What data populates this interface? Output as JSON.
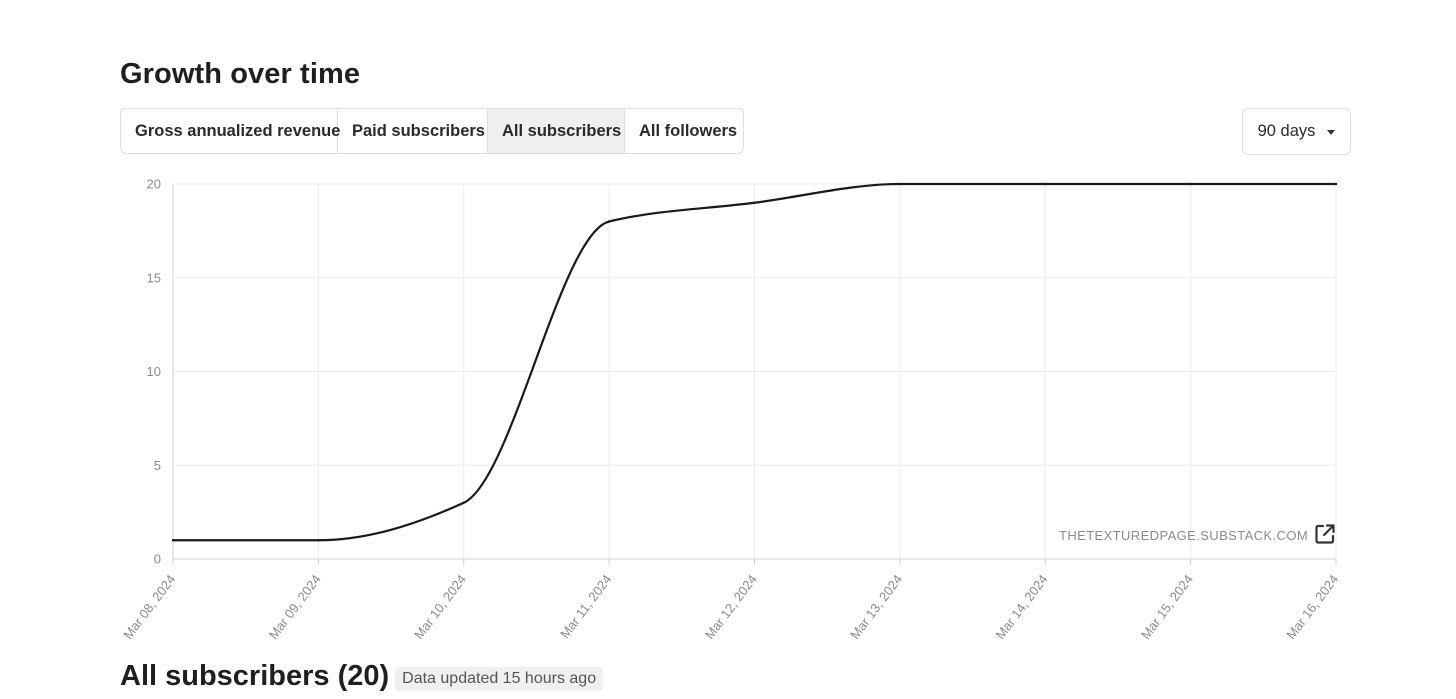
{
  "header": {
    "title": "Growth over time"
  },
  "tabs": [
    {
      "label": "Gross annualized revenue",
      "active": false
    },
    {
      "label": "Paid subscribers",
      "active": false
    },
    {
      "label": "All subscribers",
      "active": true
    },
    {
      "label": "All followers",
      "active": false
    }
  ],
  "range_select": {
    "value": "90 days",
    "icon": "caret-down-icon"
  },
  "watermark": "THETEXTUREDPAGE.SUBSTACK.COM",
  "open_external_icon": "external-link-icon",
  "footer": {
    "title": "All subscribers (20)",
    "badge": "Data updated 15 hours ago"
  },
  "colors": {
    "line": "#1a1a1a",
    "grid": "#ececec",
    "axis": "#d0d0d0",
    "tick_text": "#8a8a8a",
    "active_tab": "#efefef"
  },
  "chart_data": {
    "type": "line",
    "title": "",
    "xlabel": "",
    "ylabel": "",
    "categories": [
      "Mar 08, 2024",
      "Mar 09, 2024",
      "Mar 10, 2024",
      "Mar 11, 2024",
      "Mar 12, 2024",
      "Mar 13, 2024",
      "Mar 14, 2024",
      "Mar 15, 2024",
      "Mar 16, 2024"
    ],
    "values": [
      1,
      1,
      3,
      18,
      19,
      20,
      20,
      20,
      20
    ],
    "yticks": [
      0,
      5,
      10,
      15,
      20
    ],
    "ylim": [
      0,
      20
    ],
    "grid": true,
    "legend": "none"
  }
}
